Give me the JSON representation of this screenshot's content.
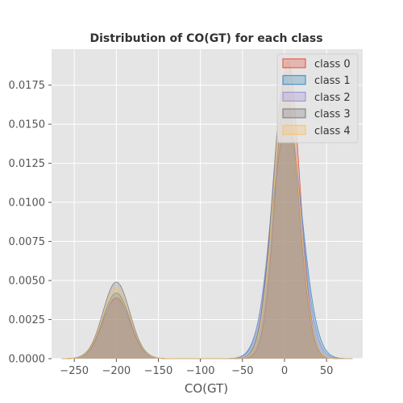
{
  "chart_data": {
    "type": "area",
    "title": "Distribution of CO(GT) for each class",
    "xlabel": "CO(GT)",
    "ylabel": "",
    "xlim": [
      -277,
      93
    ],
    "ylim": [
      0,
      0.0198
    ],
    "x_ticks": [
      -250,
      -200,
      -150,
      -100,
      -50,
      0,
      50
    ],
    "y_ticks": [
      0.0,
      0.0025,
      0.005,
      0.0075,
      0.01,
      0.0125,
      0.015,
      0.0175
    ],
    "x_tick_labels": [
      "−250",
      "−200",
      "−150",
      "−100",
      "−50",
      "0",
      "50"
    ],
    "y_tick_labels": [
      "0.0000",
      "0.0025",
      "0.0050",
      "0.0075",
      "0.0100",
      "0.0125",
      "0.0150",
      "0.0175"
    ],
    "grid": true,
    "legend_position": "top-right",
    "colors": {
      "background": "#e5e5e5",
      "grid": "#ffffff"
    },
    "series": [
      {
        "name": "class 0",
        "color": "#E24A33",
        "components": [
          {
            "weight": 0.0039,
            "mean": -200,
            "sd": 16
          },
          {
            "weight": 0.019,
            "mean": 4,
            "sd": 14
          }
        ]
      },
      {
        "name": "class 1",
        "color": "#348ABD",
        "components": [
          {
            "weight": 0.0042,
            "mean": -200,
            "sd": 16
          },
          {
            "weight": 0.015,
            "mean": 3,
            "sd": 18
          }
        ]
      },
      {
        "name": "class 2",
        "color": "#988ED5",
        "components": [
          {
            "weight": 0.0038,
            "mean": -200,
            "sd": 17
          },
          {
            "weight": 0.0165,
            "mean": 2,
            "sd": 17
          }
        ]
      },
      {
        "name": "class 3",
        "color": "#777777",
        "components": [
          {
            "weight": 0.0049,
            "mean": -200,
            "sd": 16
          },
          {
            "weight": 0.018,
            "mean": 1,
            "sd": 15
          }
        ]
      },
      {
        "name": "class 4",
        "color": "#FBC15E",
        "components": [
          {
            "weight": 0.0045,
            "mean": -200,
            "sd": 16
          },
          {
            "weight": 0.0175,
            "mean": 2,
            "sd": 15
          }
        ]
      }
    ]
  }
}
